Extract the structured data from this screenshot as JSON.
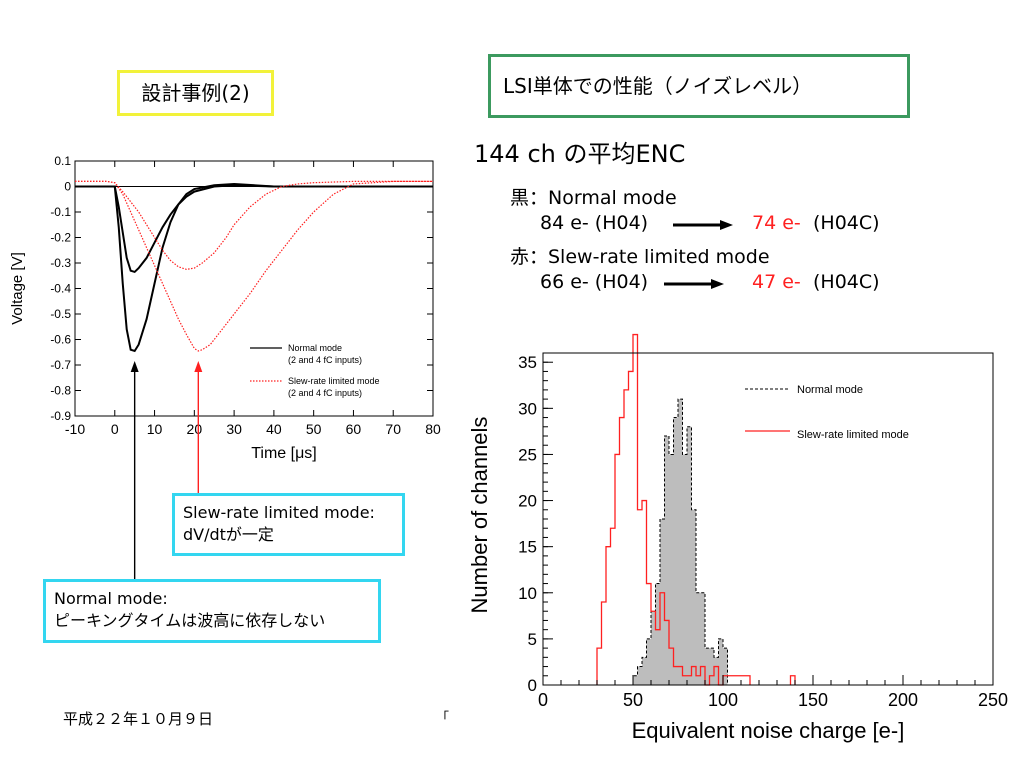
{
  "slide": {
    "title": "設計事例(2)",
    "perf_title": "LSI単体での性能（ノイズレベル）",
    "enc_header": "144 ch の平均ENC",
    "black_label": "黒：Normal mode",
    "black_before": "84 e- (H04)",
    "black_after_value": "74 e-",
    "black_after_tag": "(H04C)",
    "red_label": "赤：Slew-rate limited mode",
    "red_before": "66 e- (H04)",
    "red_after_value": "47 e-",
    "red_after_tag": "(H04C)",
    "slew_note_line1": "Slew-rate limited mode:",
    "slew_note_line2": "dV/dtが一定",
    "normal_note_line1": "Normal mode:",
    "normal_note_line2": "ピーキングタイムは波高に依存しない",
    "footer_date": "平成２２年１０月９日",
    "footer_cut": "「",
    "colors": {
      "title_border": "#f2f23a",
      "perf_border": "#3c9a5f",
      "note_border": "#33d6f0",
      "red": "#ff2020"
    }
  },
  "chart_data": [
    {
      "type": "line",
      "xlabel": "Time [μs]",
      "ylabel": "Voltage [V]",
      "xlim": [
        -10,
        80
      ],
      "ylim": [
        -0.9,
        0.1
      ],
      "x_ticks": [
        "-10",
        "0",
        "10",
        "20",
        "30",
        "40",
        "50",
        "60",
        "70",
        "80"
      ],
      "y_ticks": [
        "0.1",
        "0",
        "-0.1",
        "-0.2",
        "-0.3",
        "-0.4",
        "-0.5",
        "-0.6",
        "-0.7",
        "-0.8",
        "-0.9"
      ],
      "legend": [
        "Normal mode",
        "(2 and 4 fC inputs)",
        "Slew-rate limited mode",
        "(2 and 4 fC inputs)"
      ],
      "legend_position": "bottom-right",
      "series": [
        {
          "name": "Normal mode",
          "input": "2 fC",
          "x": [
            -10,
            -2,
            0,
            1,
            2,
            3,
            4,
            5,
            6,
            8,
            10,
            12,
            14,
            16,
            18,
            20,
            25,
            30,
            40,
            50,
            60,
            70,
            80
          ],
          "y": [
            0,
            0,
            0,
            -0.08,
            -0.18,
            -0.28,
            -0.33,
            -0.335,
            -0.32,
            -0.28,
            -0.22,
            -0.16,
            -0.11,
            -0.07,
            -0.04,
            -0.02,
            0,
            0.005,
            0,
            0,
            0,
            0,
            0
          ]
        },
        {
          "name": "Normal mode",
          "input": "4 fC",
          "x": [
            -10,
            -2,
            0,
            1,
            2,
            3,
            4,
            5,
            6,
            8,
            10,
            12,
            14,
            16,
            18,
            20,
            25,
            30,
            40,
            50,
            60,
            70,
            80
          ],
          "y": [
            0,
            0,
            0,
            -0.16,
            -0.38,
            -0.56,
            -0.64,
            -0.645,
            -0.62,
            -0.52,
            -0.38,
            -0.24,
            -0.14,
            -0.07,
            -0.03,
            -0.01,
            0.005,
            0.01,
            0,
            0,
            0,
            0,
            0
          ]
        },
        {
          "name": "Slew-rate limited mode",
          "input": "2 fC",
          "x": [
            -10,
            -2,
            0,
            2,
            4,
            6,
            8,
            10,
            12,
            14,
            16,
            18,
            20,
            22,
            25,
            28,
            30,
            34,
            38,
            42,
            46,
            50,
            60,
            70,
            80
          ],
          "y": [
            0.02,
            0.02,
            0.015,
            -0.02,
            -0.06,
            -0.1,
            -0.15,
            -0.2,
            -0.25,
            -0.29,
            -0.315,
            -0.325,
            -0.32,
            -0.3,
            -0.26,
            -0.2,
            -0.15,
            -0.08,
            -0.03,
            0,
            0.01,
            0.015,
            0.02,
            0.02,
            0.02
          ]
        },
        {
          "name": "Slew-rate limited mode",
          "input": "4 fC",
          "x": [
            -10,
            -2,
            0,
            2,
            4,
            6,
            8,
            10,
            12,
            14,
            16,
            18,
            20,
            21,
            22,
            24,
            26,
            30,
            34,
            38,
            42,
            46,
            50,
            55,
            60,
            70,
            80
          ],
          "y": [
            0.02,
            0.02,
            0.015,
            -0.03,
            -0.1,
            -0.17,
            -0.24,
            -0.31,
            -0.38,
            -0.45,
            -0.52,
            -0.58,
            -0.635,
            -0.645,
            -0.64,
            -0.62,
            -0.58,
            -0.5,
            -0.42,
            -0.33,
            -0.25,
            -0.17,
            -0.1,
            -0.03,
            0.01,
            0.02,
            0.02
          ]
        }
      ],
      "markers": [
        {
          "mode": "Normal mode",
          "x": 5
        },
        {
          "mode": "Slew-rate limited mode",
          "x": 21
        }
      ]
    },
    {
      "type": "histogram",
      "xlabel": "Equivalent noise charge [e-]",
      "ylabel": "Number of channels",
      "xlim": [
        0,
        250
      ],
      "ylim": [
        0,
        36
      ],
      "x_ticks": [
        "0",
        "50",
        "100",
        "150",
        "200",
        "250"
      ],
      "y_ticks": [
        "0",
        "5",
        "10",
        "15",
        "20",
        "25",
        "30",
        "35"
      ],
      "legend_position": "top-right",
      "bin_width": 2.5,
      "series": [
        {
          "name": "Normal mode",
          "style": "dashed-black-filled-gray",
          "bins": [
            [
              50,
              1
            ],
            [
              52.5,
              2
            ],
            [
              55,
              3
            ],
            [
              57.5,
              5
            ],
            [
              60,
              8
            ],
            [
              62.5,
              11
            ],
            [
              65,
              18
            ],
            [
              67.5,
              27
            ],
            [
              70,
              25
            ],
            [
              72.5,
              29
            ],
            [
              75,
              31
            ],
            [
              77.5,
              25
            ],
            [
              80,
              28
            ],
            [
              82.5,
              19
            ],
            [
              85,
              10
            ],
            [
              87.5,
              10
            ],
            [
              90,
              4
            ],
            [
              92.5,
              4
            ],
            [
              95,
              3
            ],
            [
              97.5,
              5
            ],
            [
              100,
              4
            ]
          ]
        },
        {
          "name": "Slew-rate limited mode",
          "style": "red-outline",
          "bins": [
            [
              30,
              4
            ],
            [
              32.5,
              9
            ],
            [
              35,
              15
            ],
            [
              37.5,
              17
            ],
            [
              40,
              25
            ],
            [
              42.5,
              29
            ],
            [
              45,
              32
            ],
            [
              47.5,
              34
            ],
            [
              50,
              38
            ],
            [
              52.5,
              19
            ],
            [
              55,
              20
            ],
            [
              57.5,
              11
            ],
            [
              60,
              8
            ],
            [
              62.5,
              6
            ],
            [
              65,
              10
            ],
            [
              67.5,
              7
            ],
            [
              70,
              4
            ],
            [
              72.5,
              2
            ],
            [
              75,
              2
            ],
            [
              77.5,
              1
            ],
            [
              80,
              1
            ],
            [
              82.5,
              2
            ],
            [
              85,
              1
            ],
            [
              87.5,
              2
            ],
            [
              90,
              0
            ],
            [
              92.5,
              1
            ],
            [
              95,
              2
            ],
            [
              97.5,
              0
            ],
            [
              100,
              1
            ],
            [
              102.5,
              1
            ],
            [
              105,
              1
            ],
            [
              107.5,
              1
            ],
            [
              110,
              1
            ],
            [
              112.5,
              1
            ],
            [
              137.5,
              1
            ]
          ]
        }
      ]
    }
  ]
}
